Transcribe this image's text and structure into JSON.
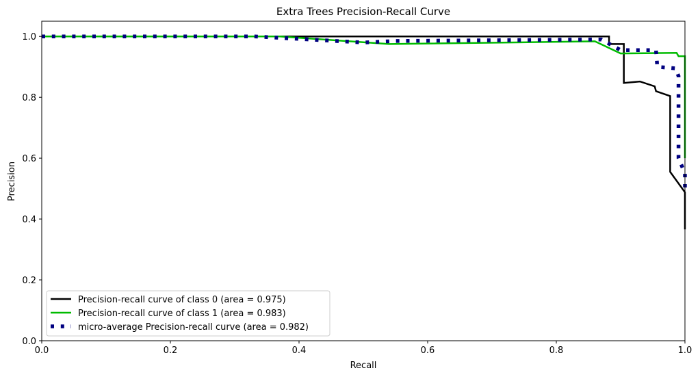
{
  "chart_data": {
    "type": "line",
    "title": "Extra Trees Precision-Recall Curve",
    "xlabel": "Recall",
    "ylabel": "Precision",
    "xlim": [
      0.0,
      1.0
    ],
    "ylim": [
      0.0,
      1.05
    ],
    "xticks": [
      "0.0",
      "0.2",
      "0.4",
      "0.6",
      "0.8",
      "1.0"
    ],
    "yticks": [
      "0.0",
      "0.2",
      "0.4",
      "0.6",
      "0.8",
      "1.0"
    ],
    "grid": false,
    "legend_position": "lower left",
    "series": [
      {
        "name": "Precision-recall curve of class 0 (area = 0.975)",
        "color": "#000000",
        "style": "solid",
        "x": [
          0.0,
          0.882,
          0.882,
          0.905,
          0.905,
          0.93,
          0.953,
          0.955,
          0.977,
          0.977,
          1.0,
          1.0
        ],
        "y": [
          1.0,
          1.0,
          0.975,
          0.975,
          0.847,
          0.852,
          0.836,
          0.82,
          0.804,
          0.555,
          0.488,
          0.366
        ]
      },
      {
        "name": "Precision-recall curve of class 1 (area = 0.983)",
        "color": "#00bb00",
        "style": "solid",
        "x": [
          0.0,
          0.37,
          0.54,
          0.86,
          0.875,
          0.9,
          0.987,
          0.99,
          1.0,
          1.0
        ],
        "y": [
          1.0,
          1.0,
          0.975,
          0.984,
          0.969,
          0.944,
          0.946,
          0.935,
          0.935,
          0.6
        ]
      },
      {
        "name": "micro-average Precision-recall curve (area = 0.982)",
        "color": "#000080",
        "style": "dotted",
        "x": [
          0.0,
          0.33,
          0.5,
          0.55,
          0.87,
          0.9,
          0.955,
          0.957,
          0.985,
          0.99,
          0.99,
          1.0,
          1.0
        ],
        "y": [
          1.0,
          1.0,
          0.98,
          0.985,
          0.99,
          0.955,
          0.955,
          0.9,
          0.895,
          0.87,
          0.6,
          0.55,
          0.5
        ]
      }
    ]
  }
}
